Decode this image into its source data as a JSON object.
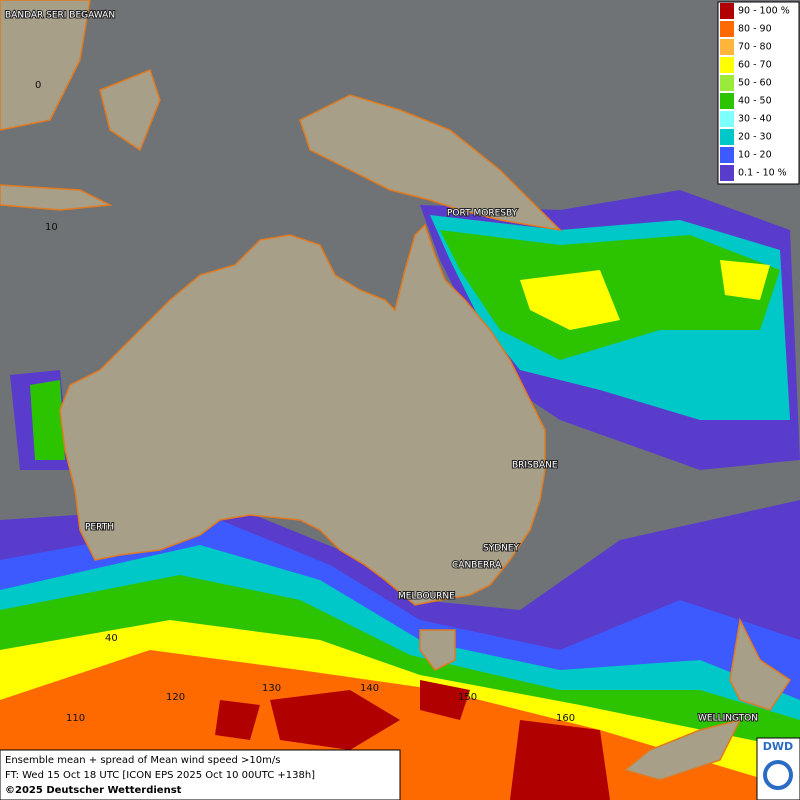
{
  "map": {
    "cities": [
      "BANDAR SERI BEGAWAN",
      "PORT MORESBY",
      "BRISBANE",
      "PERTH",
      "SYDNEY",
      "CANBERRA",
      "MELBOURNE",
      "WELLINGTON"
    ],
    "grid_labels": [
      "0",
      "10",
      "40",
      "110",
      "120",
      "130",
      "140",
      "150",
      "160"
    ],
    "legend": [
      {
        "label": "90 - 100 %",
        "color": "#b00000"
      },
      {
        "label": "80 - 90",
        "color": "#ff6a00"
      },
      {
        "label": "70 - 80",
        "color": "#ffb43c"
      },
      {
        "label": "60 - 70",
        "color": "#ffff00"
      },
      {
        "label": "50 - 60",
        "color": "#9bea3a"
      },
      {
        "label": "40 - 50",
        "color": "#2cc400"
      },
      {
        "label": "30 - 40",
        "color": "#7dffff"
      },
      {
        "label": "20 - 30",
        "color": "#00c8c8"
      },
      {
        "label": "10 - 20",
        "color": "#3c5aff"
      },
      {
        "label": "0.1 - 10 %",
        "color": "#5a3ccc"
      }
    ],
    "footer": [
      "Ensemble mean + spread of Mean wind speed >10m/s",
      "FT: Wed 15 Oct 18 UTC [ICON EPS 2025 Oct 10 00UTC +138h]",
      "©2025 Deutscher Wetterdienst"
    ],
    "logo": "DWD"
  }
}
